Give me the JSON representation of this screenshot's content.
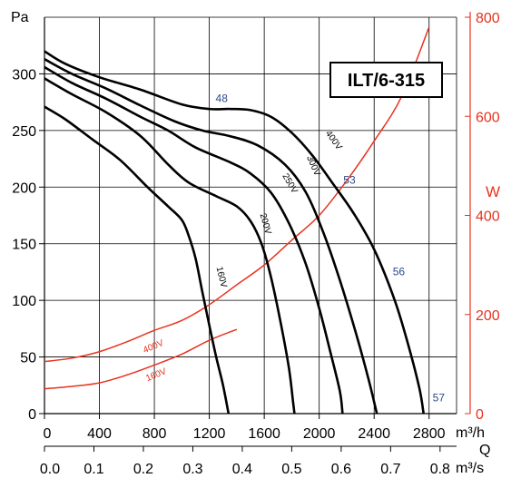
{
  "chart_data": {
    "type": "line",
    "title": "ILT/6-315",
    "y_unit": "Pa",
    "y2_unit": "W",
    "x_unit": "m³/h",
    "x2_symbol": "Q",
    "x2_unit": "m³/s",
    "xlim": [
      0,
      3000
    ],
    "ylim": [
      0,
      350
    ],
    "y2lim": [
      0,
      800
    ],
    "x2lim": [
      0,
      0.833
    ],
    "x_ticks": [
      0,
      400,
      800,
      1200,
      1600,
      2000,
      2400,
      2800
    ],
    "x_tick_labels": [
      "0",
      "400",
      "800",
      "1200",
      "1600",
      "2000",
      "2400",
      "2800"
    ],
    "x2_ticks": [
      0.0,
      0.1,
      0.2,
      0.3,
      0.4,
      0.5,
      0.6,
      0.7,
      0.8
    ],
    "x2_tick_labels": [
      "0.0",
      "0.1",
      "0.2",
      "0.3",
      "0.4",
      "0.5",
      "0.6",
      "0.7",
      "0.8"
    ],
    "y_ticks": [
      0,
      50,
      100,
      150,
      200,
      250,
      300
    ],
    "y_tick_labels": [
      "0",
      "50",
      "100",
      "150",
      "200",
      "250",
      "300"
    ],
    "y2_ticks": [
      0,
      200,
      400,
      600,
      800
    ],
    "y2_tick_labels": [
      "0",
      "200",
      "400",
      "600",
      "800"
    ],
    "grid": true,
    "colors": {
      "pressure": "#000000",
      "power": "#e8321e",
      "noise": "#2b4a8c",
      "grid": "#000000"
    },
    "pressure_series": [
      {
        "name": "400V",
        "label_at": [
          2090,
          240
        ],
        "points": [
          [
            0,
            320
          ],
          [
            150,
            309
          ],
          [
            400,
            297
          ],
          [
            700,
            286
          ],
          [
            1000,
            273
          ],
          [
            1200,
            269
          ],
          [
            1350,
            269
          ],
          [
            1500,
            268
          ],
          [
            1650,
            262
          ],
          [
            1800,
            248
          ],
          [
            1950,
            228
          ],
          [
            2100,
            203
          ],
          [
            2250,
            177
          ],
          [
            2400,
            145
          ],
          [
            2550,
            100
          ],
          [
            2650,
            60
          ],
          [
            2730,
            22
          ],
          [
            2760,
            0
          ]
        ]
      },
      {
        "name": "300V",
        "label_at": [
          1940,
          218
        ],
        "points": [
          [
            0,
            313
          ],
          [
            200,
            300
          ],
          [
            450,
            287
          ],
          [
            700,
            272
          ],
          [
            950,
            258
          ],
          [
            1150,
            250
          ],
          [
            1350,
            245
          ],
          [
            1550,
            237
          ],
          [
            1750,
            220
          ],
          [
            1900,
            196
          ],
          [
            2030,
            160
          ],
          [
            2150,
            118
          ],
          [
            2270,
            70
          ],
          [
            2360,
            30
          ],
          [
            2420,
            0
          ]
        ]
      },
      {
        "name": "250V",
        "label_at": [
          1770,
          202
        ],
        "points": [
          [
            0,
            306
          ],
          [
            200,
            292
          ],
          [
            450,
            278
          ],
          [
            700,
            262
          ],
          [
            900,
            250
          ],
          [
            1100,
            235
          ],
          [
            1350,
            222
          ],
          [
            1500,
            212
          ],
          [
            1650,
            195
          ],
          [
            1780,
            168
          ],
          [
            1900,
            133
          ],
          [
            2000,
            93
          ],
          [
            2080,
            55
          ],
          [
            2150,
            20
          ],
          [
            2170,
            0
          ]
        ]
      },
      {
        "name": "200V",
        "label_at": [
          1590,
          167
        ],
        "points": [
          [
            0,
            296
          ],
          [
            200,
            282
          ],
          [
            450,
            266
          ],
          [
            700,
            245
          ],
          [
            900,
            220
          ],
          [
            1050,
            204
          ],
          [
            1250,
            192
          ],
          [
            1400,
            183
          ],
          [
            1500,
            170
          ],
          [
            1580,
            150
          ],
          [
            1650,
            120
          ],
          [
            1720,
            80
          ],
          [
            1780,
            40
          ],
          [
            1810,
            10
          ],
          [
            1820,
            0
          ]
        ]
      },
      {
        "name": "160V",
        "label_at": [
          1270,
          120
        ],
        "points": [
          [
            0,
            271
          ],
          [
            150,
            260
          ],
          [
            350,
            242
          ],
          [
            550,
            224
          ],
          [
            750,
            200
          ],
          [
            900,
            183
          ],
          [
            1000,
            171
          ],
          [
            1050,
            157
          ],
          [
            1100,
            137
          ],
          [
            1150,
            107
          ],
          [
            1200,
            78
          ],
          [
            1250,
            50
          ],
          [
            1300,
            25
          ],
          [
            1340,
            0
          ]
        ]
      }
    ],
    "power_series": [
      {
        "name": "400V",
        "label_at": [
          800,
          57
        ],
        "points": [
          [
            0,
            105
          ],
          [
            200,
            112
          ],
          [
            400,
            125
          ],
          [
            600,
            145
          ],
          [
            800,
            168
          ],
          [
            1000,
            188
          ],
          [
            1200,
            220
          ],
          [
            1400,
            260
          ],
          [
            1600,
            300
          ],
          [
            1800,
            350
          ],
          [
            2000,
            400
          ],
          [
            2200,
            470
          ],
          [
            2400,
            550
          ],
          [
            2600,
            640
          ],
          [
            2800,
            780
          ]
        ]
      },
      {
        "name": "160V",
        "label_at": [
          820,
          32
        ],
        "points": [
          [
            0,
            50
          ],
          [
            200,
            55
          ],
          [
            400,
            62
          ],
          [
            600,
            78
          ],
          [
            800,
            98
          ],
          [
            1000,
            120
          ],
          [
            1200,
            148
          ],
          [
            1400,
            170
          ]
        ]
      }
    ],
    "noise_annotations": [
      {
        "label": "48",
        "at": [
          1290,
          275
        ]
      },
      {
        "label": "53",
        "at": [
          2220,
          203
        ]
      },
      {
        "label": "56",
        "at": [
          2580,
          122
        ]
      },
      {
        "label": "57",
        "at": [
          2870,
          11
        ]
      }
    ]
  }
}
